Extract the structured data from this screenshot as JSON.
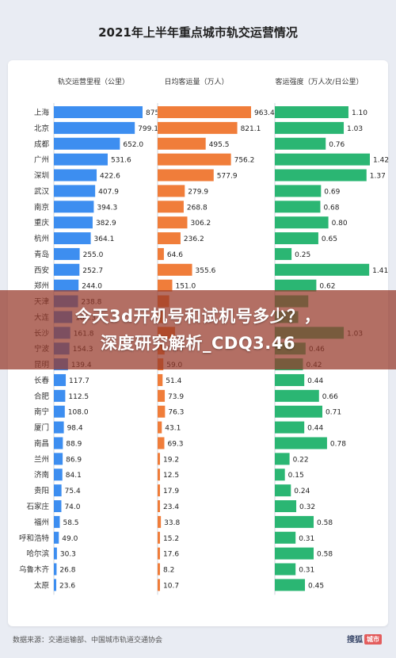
{
  "page": {
    "title": "2021年上半年重点城市轨交运营情况",
    "source": "数据来源：交通运输部、中国城市轨道交通协会",
    "logo_text": "搜狐",
    "logo_tag": "城市",
    "overlay_line1": "今天3d开机号和试机号多少？，",
    "overlay_line2": "深度研究解析_CDQ3.46"
  },
  "chart_data": {
    "type": "bar",
    "orientation": "horizontal",
    "title": "2021年上半年重点城市轨交运营情况",
    "categories": [
      "上海",
      "北京",
      "成都",
      "广州",
      "深圳",
      "武汉",
      "南京",
      "重庆",
      "杭州",
      "青岛",
      "西安",
      "郑州",
      "天津",
      "大连",
      "长沙",
      "宁波",
      "昆明",
      "长春",
      "合肥",
      "南宁",
      "厦门",
      "南昌",
      "兰州",
      "济南",
      "贵阳",
      "石家庄",
      "福州",
      "呼和浩特",
      "哈尔滨",
      "乌鲁木齐",
      "太原"
    ],
    "series": [
      {
        "name": "轨交运营里程（公里）",
        "color": "#3d8ef0",
        "values": [
          875.9,
          799.1,
          652.0,
          531.6,
          422.6,
          407.9,
          394.3,
          382.9,
          364.1,
          255.0,
          252.7,
          244.0,
          238.8,
          181.3,
          161.8,
          154.3,
          139.4,
          117.7,
          112.5,
          108.0,
          98.4,
          88.9,
          86.9,
          84.1,
          75.4,
          74.0,
          58.5,
          49.0,
          30.3,
          26.8,
          23.6
        ],
        "labels": [
          "875.9",
          "799.1",
          "652.0",
          "531.6",
          "422.6",
          "407.9",
          "394.3",
          "382.9",
          "364.1",
          "255.0",
          "252.7",
          "244.0",
          "238.8",
          "181.3",
          "161.8",
          "154.3",
          "139.4",
          "117.7",
          "112.5",
          "108.0",
          "98.4",
          "88.9",
          "86.9",
          "84.1",
          "75.4",
          "74.0",
          "58.5",
          "49.0",
          "30.3",
          "26.8",
          "23.6"
        ]
      },
      {
        "name": "日均客运量（万人）",
        "color": "#f07d3a",
        "values": [
          963.4,
          821.1,
          495.5,
          756.2,
          577.9,
          279.9,
          268.8,
          306.2,
          236.2,
          64.6,
          355.6,
          151.0,
          120.0,
          63.0,
          180.0,
          71.5,
          59.0,
          51.4,
          73.9,
          76.3,
          43.1,
          69.3,
          19.2,
          12.5,
          17.9,
          23.4,
          33.8,
          15.2,
          17.6,
          8.2,
          10.7
        ],
        "labels": [
          "963.4",
          "821.1",
          "495.5",
          "756.2",
          "577.9",
          "279.9",
          "268.8",
          "306.2",
          "236.2",
          "64.6",
          "355.6",
          "151.0",
          "",
          "",
          "",
          "71.5",
          "59.0",
          "51.4",
          "73.9",
          "76.3",
          "43.1",
          "69.3",
          "19.2",
          "12.5",
          "17.9",
          "23.4",
          "33.8",
          "15.2",
          "17.6",
          "8.2",
          "10.7"
        ]
      },
      {
        "name": "客运强度（万人次/日公里）",
        "color": "#2bb673",
        "values": [
          1.1,
          1.03,
          0.76,
          1.42,
          1.37,
          0.69,
          0.68,
          0.8,
          0.65,
          0.25,
          1.41,
          0.62,
          0.5,
          0.35,
          1.03,
          0.46,
          0.42,
          0.44,
          0.66,
          0.71,
          0.44,
          0.78,
          0.22,
          0.15,
          0.24,
          0.32,
          0.58,
          0.31,
          0.58,
          0.31,
          0.45
        ],
        "labels": [
          "1.10",
          "1.03",
          "0.76",
          "1.42",
          "1.37",
          "0.69",
          "0.68",
          "0.80",
          "0.65",
          "0.25",
          "1.41",
          "0.62",
          "",
          "",
          "1.03",
          "0.46",
          "0.42",
          "0.44",
          "0.66",
          "0.71",
          "0.44",
          "0.78",
          "0.22",
          "0.15",
          "0.24",
          "0.32",
          "0.58",
          "0.31",
          "0.58",
          "0.31",
          "0.45"
        ]
      }
    ]
  }
}
